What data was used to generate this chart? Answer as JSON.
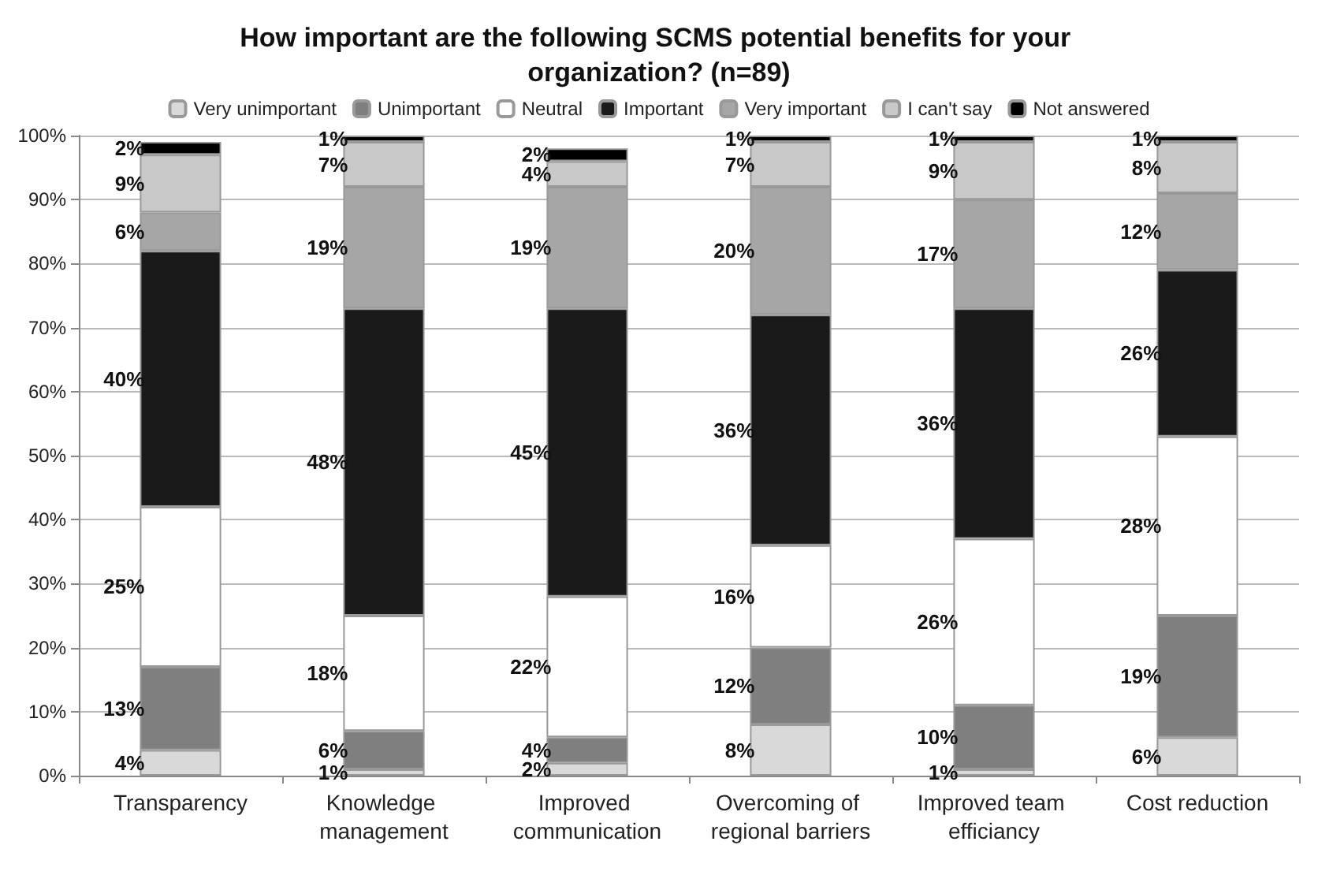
{
  "chart_data": {
    "type": "bar",
    "title": "How important are the following SCMS potential benefits for your organization? (n=89)",
    "categories": [
      "Transparency",
      "Knowledge management",
      "Improved communication",
      "Overcoming of regional barriers",
      "Improved team efficiancy",
      "Cost reduction"
    ],
    "stacked": true,
    "ylim": [
      0,
      100
    ],
    "yticks": [
      {
        "value": 0,
        "label": "0%"
      },
      {
        "value": 10,
        "label": "10%"
      },
      {
        "value": 20,
        "label": "20%"
      },
      {
        "value": 30,
        "label": "30%"
      },
      {
        "value": 40,
        "label": "40%"
      },
      {
        "value": 50,
        "label": "50%"
      },
      {
        "value": 60,
        "label": "60%"
      },
      {
        "value": 70,
        "label": "70%"
      },
      {
        "value": 80,
        "label": "80%"
      },
      {
        "value": 90,
        "label": "90%"
      },
      {
        "value": 100,
        "label": "100%"
      }
    ],
    "grid": "y",
    "legend": "top",
    "series": [
      {
        "name": "Very unimportant",
        "color": "#d9d9d9",
        "values": [
          4,
          1,
          2,
          8,
          1,
          6
        ],
        "value_labels": [
          "4%",
          "1%",
          "2%",
          "8%",
          "1%",
          "6%"
        ]
      },
      {
        "name": "Unimportant",
        "color": "#7f7f7f",
        "values": [
          13,
          6,
          4,
          12,
          10,
          19
        ],
        "value_labels": [
          "13%",
          "6%",
          "4%",
          "12%",
          "10%",
          "19%"
        ]
      },
      {
        "name": "Neutral",
        "color": "#ffffff",
        "values": [
          25,
          18,
          22,
          16,
          26,
          28
        ],
        "value_labels": [
          "25%",
          "18%",
          "22%",
          "16%",
          "26%",
          "28%"
        ]
      },
      {
        "name": "Important",
        "color": "#1a1a1a",
        "values": [
          40,
          48,
          45,
          36,
          36,
          26
        ],
        "value_labels": [
          "40%",
          "48%",
          "45%",
          "36%",
          "36%",
          "26%"
        ]
      },
      {
        "name": "Very important",
        "color": "#a6a6a6",
        "values": [
          6,
          19,
          19,
          20,
          17,
          12
        ],
        "value_labels": [
          "6%",
          "19%",
          "19%",
          "20%",
          "17%",
          "12%"
        ]
      },
      {
        "name": "I can't say",
        "color": "#c8c8c8",
        "values": [
          9,
          7,
          4,
          7,
          9,
          8
        ],
        "value_labels": [
          "9%",
          "7%",
          "4%",
          "7%",
          "9%",
          "8%"
        ]
      },
      {
        "name": "Not answered",
        "color": "#000000",
        "values": [
          2,
          1,
          2,
          1,
          1,
          1
        ],
        "value_labels": [
          "2%",
          "1%",
          "2%",
          "1%",
          "1%",
          "1%"
        ]
      }
    ]
  }
}
